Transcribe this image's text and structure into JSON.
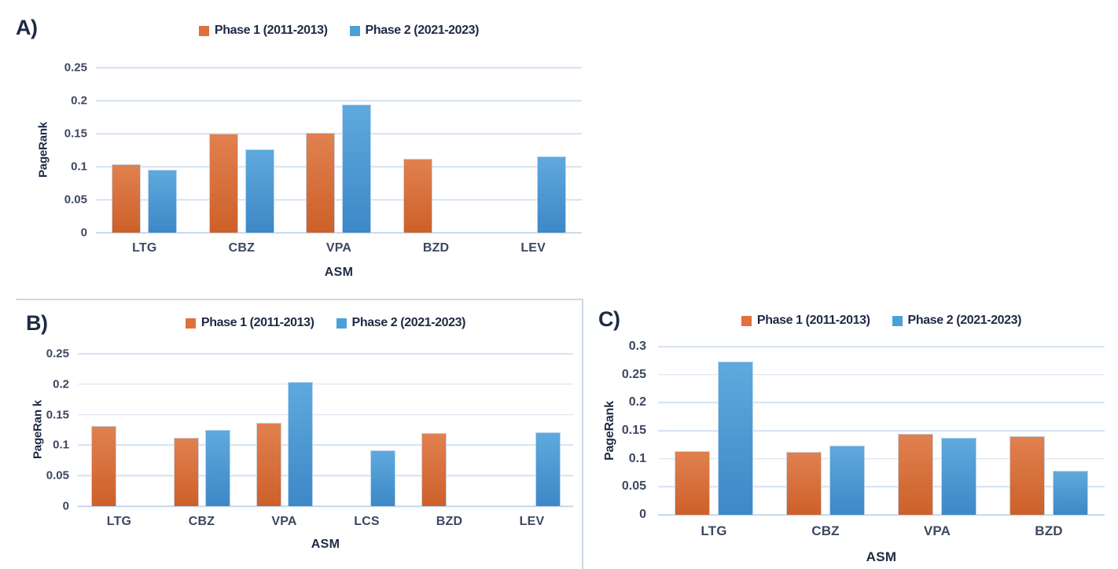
{
  "figure": {
    "background": "#ffffff",
    "text_color": "#1e2a45",
    "tick_color": "#3c4860",
    "gridline_color": "#d4e2f1",
    "axis_line_color": "#c3d7ea",
    "panel_border_color": "#ccd8e3",
    "legend_items": [
      {
        "label": "Phase 1 (2011-2013)",
        "color": "#e0703c",
        "gradient_top": "#e08150",
        "gradient_bottom": "#cd6029"
      },
      {
        "label": "Phase 2 (2021-2023)",
        "color": "#4aa1da",
        "gradient_top": "#5fa9de",
        "gradient_bottom": "#3d88c6"
      }
    ]
  },
  "chart_data": [
    {
      "panel": "A)",
      "type": "bar",
      "xlabel": "ASM",
      "ylabel": "PageRank",
      "ymin": 0,
      "ymax": 0.25,
      "yticks": [
        0.25,
        0.2,
        0.15,
        0.1,
        0.05,
        0
      ],
      "ytick_labels": [
        "0.25",
        "0.2",
        "0.15",
        "0.1",
        "0.05",
        "0"
      ],
      "grid": true,
      "legend_position": "top-center",
      "categories": [
        "LTG",
        "CBZ",
        "VPA",
        "BZD",
        "LEV"
      ],
      "series": [
        {
          "name": "Phase 1 (2011-2013)",
          "values": [
            0.104,
            0.15,
            0.151,
            0.112,
            0
          ]
        },
        {
          "name": "Phase 2 (2021-2023)",
          "values": [
            0.095,
            0.126,
            0.194,
            0,
            0.116
          ]
        }
      ]
    },
    {
      "panel": "B)",
      "type": "bar",
      "xlabel": "ASM",
      "ylabel": "PageRan k",
      "ymin": 0,
      "ymax": 0.25,
      "yticks": [
        0.25,
        0.2,
        0.15,
        0.1,
        0.05,
        0
      ],
      "ytick_labels": [
        "0.25",
        "0.2",
        "0.15",
        "0.1",
        "0.05",
        "0"
      ],
      "grid": true,
      "legend_position": "top-center",
      "categories": [
        "LTG",
        "CBZ",
        "VPA",
        "LCS",
        "BZD",
        "LEV"
      ],
      "series": [
        {
          "name": "Phase 1 (2011-2013)",
          "values": [
            0.131,
            0.112,
            0.137,
            0,
            0.12,
            0
          ]
        },
        {
          "name": "Phase 2 (2021-2023)",
          "values": [
            0,
            0.125,
            0.204,
            0.092,
            0,
            0.121
          ]
        }
      ]
    },
    {
      "panel": "C)",
      "type": "bar",
      "xlabel": "ASM",
      "ylabel": "PageRank",
      "ymin": 0,
      "ymax": 0.3,
      "yticks": [
        0.3,
        0.25,
        0.2,
        0.15,
        0.1,
        0.05,
        0
      ],
      "ytick_labels": [
        "0.3",
        "0.25",
        "0.2",
        "0.15",
        "0.1",
        "0.05",
        "0"
      ],
      "grid": true,
      "legend_position": "top-center",
      "categories": [
        "LTG",
        "CBZ",
        "VPA",
        "BZD"
      ],
      "series": [
        {
          "name": "Phase 1 (2011-2013)",
          "values": [
            0.113,
            0.112,
            0.144,
            0.14
          ]
        },
        {
          "name": "Phase 2 (2021-2023)",
          "values": [
            0.273,
            0.123,
            0.137,
            0.078
          ]
        }
      ]
    }
  ]
}
